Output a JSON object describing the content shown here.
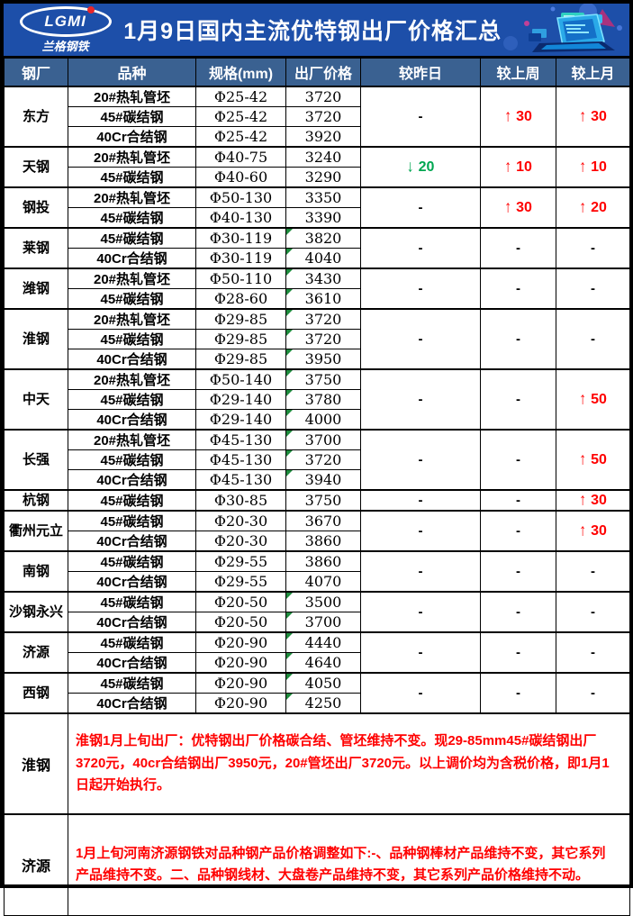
{
  "header": {
    "logo_text": "LGMI",
    "logo_subtext": "兰格钢铁",
    "title": "1月9日国内主流优特钢出厂价格汇总"
  },
  "colors": {
    "banner_bg": "#1d4fa9",
    "table_header_bg": "#3a6191",
    "up_red": "#ff0000",
    "down_green": "#00a651",
    "note_red": "#ff0000",
    "comment_marker_green": "#1e8b3d"
  },
  "table": {
    "columns": [
      "钢厂",
      "品种",
      "规格(mm)",
      "出厂价格",
      "较昨日",
      "较上周",
      "较上月"
    ],
    "mills": [
      {
        "name": "东方",
        "rows": [
          {
            "variety": "20#热轧管坯",
            "spec": "Φ25-42",
            "price": "3720",
            "marker": false
          },
          {
            "variety": "45#碳结钢",
            "spec": "Φ25-42",
            "price": "3720",
            "marker": false
          },
          {
            "variety": "40Cr合结钢",
            "spec": "Φ25-42",
            "price": "3920",
            "marker": false
          }
        ],
        "vs_yesterday": {
          "dir": "none",
          "text": "-"
        },
        "vs_last_week": {
          "dir": "up",
          "text": "30"
        },
        "vs_last_month": {
          "dir": "up",
          "text": "30"
        }
      },
      {
        "name": "天钢",
        "rows": [
          {
            "variety": "20#热轧管坯",
            "spec": "Φ40-75",
            "price": "3240",
            "marker": false
          },
          {
            "variety": "45#碳结钢",
            "spec": "Φ40-60",
            "price": "3290",
            "marker": false
          }
        ],
        "vs_yesterday": {
          "dir": "down",
          "text": "20"
        },
        "vs_last_week": {
          "dir": "up",
          "text": "10"
        },
        "vs_last_month": {
          "dir": "up",
          "text": "10"
        }
      },
      {
        "name": "钢投",
        "rows": [
          {
            "variety": "20#热轧管坯",
            "spec": "Φ50-130",
            "price": "3350",
            "marker": false
          },
          {
            "variety": "45#碳结钢",
            "spec": "Φ40-130",
            "price": "3390",
            "marker": false
          }
        ],
        "vs_yesterday": {
          "dir": "none",
          "text": "-"
        },
        "vs_last_week": {
          "dir": "up",
          "text": "30"
        },
        "vs_last_month": {
          "dir": "up",
          "text": "20"
        }
      },
      {
        "name": "莱钢",
        "rows": [
          {
            "variety": "45#碳结钢",
            "spec": "Φ30-119",
            "price": "3820",
            "marker": true
          },
          {
            "variety": "40Cr合结钢",
            "spec": "Φ30-119",
            "price": "4040",
            "marker": true
          }
        ],
        "vs_yesterday": {
          "dir": "none",
          "text": "-"
        },
        "vs_last_week": {
          "dir": "none",
          "text": "-"
        },
        "vs_last_month": {
          "dir": "none",
          "text": "-"
        }
      },
      {
        "name": "潍钢",
        "rows": [
          {
            "variety": "20#热轧管坯",
            "spec": "Φ50-110",
            "price": "3430",
            "marker": true
          },
          {
            "variety": "45#碳结钢",
            "spec": "Φ28-60",
            "price": "3610",
            "marker": true
          }
        ],
        "vs_yesterday": {
          "dir": "none",
          "text": "-"
        },
        "vs_last_week": {
          "dir": "none",
          "text": "-"
        },
        "vs_last_month": {
          "dir": "none",
          "text": "-"
        }
      },
      {
        "name": "淮钢",
        "rows": [
          {
            "variety": "20#热轧管坯",
            "spec": "Φ29-85",
            "price": "3720",
            "marker": true
          },
          {
            "variety": "45#碳结钢",
            "spec": "Φ29-85",
            "price": "3720",
            "marker": true
          },
          {
            "variety": "40Cr合结钢",
            "spec": "Φ29-85",
            "price": "3950",
            "marker": true
          }
        ],
        "vs_yesterday": {
          "dir": "none",
          "text": "-"
        },
        "vs_last_week": {
          "dir": "none",
          "text": "-"
        },
        "vs_last_month": {
          "dir": "none",
          "text": "-"
        }
      },
      {
        "name": "中天",
        "rows": [
          {
            "variety": "20#热轧管坯",
            "spec": "Φ50-140",
            "price": "3750",
            "marker": true
          },
          {
            "variety": "45#碳结钢",
            "spec": "Φ29-140",
            "price": "3780",
            "marker": true
          },
          {
            "variety": "40Cr合结钢",
            "spec": "Φ29-140",
            "price": "4000",
            "marker": true
          }
        ],
        "vs_yesterday": {
          "dir": "none",
          "text": "-"
        },
        "vs_last_week": {
          "dir": "none",
          "text": "-"
        },
        "vs_last_month": {
          "dir": "up",
          "text": "50"
        }
      },
      {
        "name": "长强",
        "rows": [
          {
            "variety": "20#热轧管坯",
            "spec": "Φ45-130",
            "price": "3700",
            "marker": true
          },
          {
            "variety": "45#碳结钢",
            "spec": "Φ45-130",
            "price": "3720",
            "marker": true
          },
          {
            "variety": "40Cr合结钢",
            "spec": "Φ45-130",
            "price": "3940",
            "marker": true
          }
        ],
        "vs_yesterday": {
          "dir": "none",
          "text": "-"
        },
        "vs_last_week": {
          "dir": "none",
          "text": "-"
        },
        "vs_last_month": {
          "dir": "up",
          "text": "50"
        }
      },
      {
        "name": "杭钢",
        "rows": [
          {
            "variety": "45#碳结钢",
            "spec": "Φ30-85",
            "price": "3750",
            "marker": false
          }
        ],
        "vs_yesterday": {
          "dir": "none",
          "text": "-"
        },
        "vs_last_week": {
          "dir": "none",
          "text": "-"
        },
        "vs_last_month": {
          "dir": "up",
          "text": "30"
        }
      },
      {
        "name": "衢州元立",
        "rows": [
          {
            "variety": "45#碳结钢",
            "spec": "Φ20-30",
            "price": "3670",
            "marker": false
          },
          {
            "variety": "40Cr合结钢",
            "spec": "Φ20-30",
            "price": "3860",
            "marker": false
          }
        ],
        "vs_yesterday": {
          "dir": "none",
          "text": "-"
        },
        "vs_last_week": {
          "dir": "none",
          "text": "-"
        },
        "vs_last_month": {
          "dir": "up",
          "text": "30"
        }
      },
      {
        "name": "南钢",
        "rows": [
          {
            "variety": "45#碳结钢",
            "spec": "Φ29-55",
            "price": "3860",
            "marker": false
          },
          {
            "variety": "40Cr合结钢",
            "spec": "Φ29-55",
            "price": "4070",
            "marker": false
          }
        ],
        "vs_yesterday": {
          "dir": "none",
          "text": "-"
        },
        "vs_last_week": {
          "dir": "none",
          "text": "-"
        },
        "vs_last_month": {
          "dir": "none",
          "text": "-"
        }
      },
      {
        "name": "沙钢永兴",
        "rows": [
          {
            "variety": "45#碳结钢",
            "spec": "Φ20-50",
            "price": "3500",
            "marker": true
          },
          {
            "variety": "40Cr合结钢",
            "spec": "Φ20-50",
            "price": "3700",
            "marker": true
          }
        ],
        "vs_yesterday": {
          "dir": "none",
          "text": "-"
        },
        "vs_last_week": {
          "dir": "none",
          "text": "-"
        },
        "vs_last_month": {
          "dir": "none",
          "text": "-"
        }
      },
      {
        "name": "济源",
        "rows": [
          {
            "variety": "45#碳结钢",
            "spec": "Φ20-90",
            "price": "4440",
            "marker": true
          },
          {
            "variety": "40Cr合结钢",
            "spec": "Φ20-90",
            "price": "4640",
            "marker": true
          }
        ],
        "vs_yesterday": {
          "dir": "none",
          "text": "-"
        },
        "vs_last_week": {
          "dir": "none",
          "text": "-"
        },
        "vs_last_month": {
          "dir": "none",
          "text": "-"
        }
      },
      {
        "name": "西钢",
        "rows": [
          {
            "variety": "45#碳结钢",
            "spec": "Φ20-90",
            "price": "4050",
            "marker": true
          },
          {
            "variety": "40Cr合结钢",
            "spec": "Φ20-90",
            "price": "4250",
            "marker": true
          }
        ],
        "vs_yesterday": {
          "dir": "none",
          "text": "-"
        },
        "vs_last_week": {
          "dir": "none",
          "text": "-"
        },
        "vs_last_month": {
          "dir": "none",
          "text": "-"
        }
      }
    ],
    "notes": [
      {
        "mill": "淮钢",
        "text": "淮钢1月上旬出厂：优特钢出厂价格碳合结、管坯维持不变。现29-85mm45#碳结钢出厂3720元，40cr合结钢出厂3950元，20#管坯出厂3720元。以上调价均为含税价格，即1月1日起开始执行。"
      },
      {
        "mill": "济源",
        "text": "1月上旬河南济源钢铁对品种钢产品价格调整如下:-、品种钢棒材产品维持不变，其它系列产品维持不变。二、品种钢线材、大盘卷产品维持不变，其它系列产品价格维持不动。"
      }
    ]
  }
}
